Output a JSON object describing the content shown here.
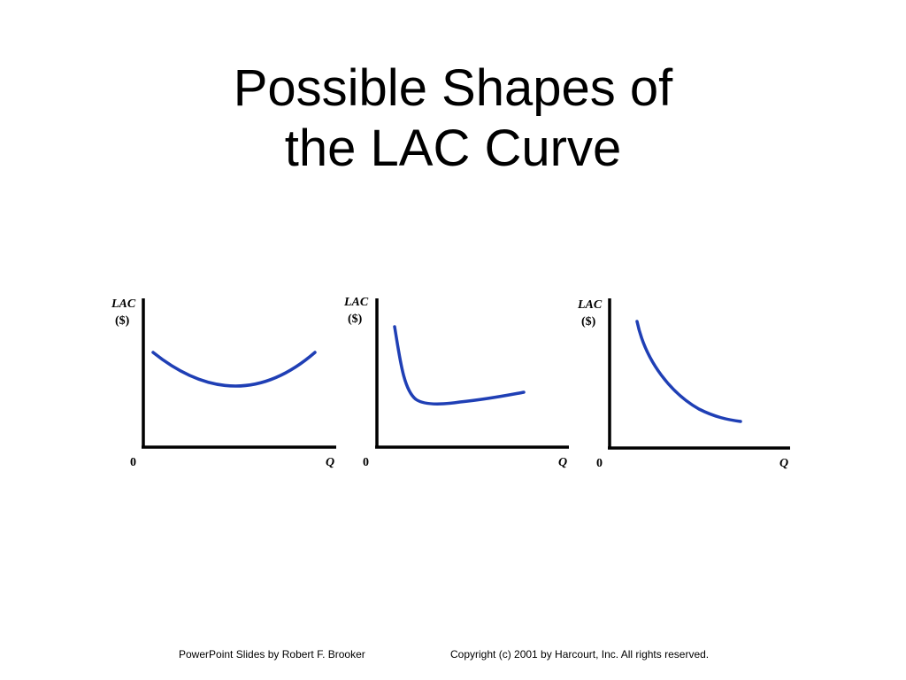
{
  "slide": {
    "title_line1": "Possible Shapes of",
    "title_line2": "the LAC Curve"
  },
  "colors": {
    "curve": "#1f3fb5",
    "axis": "#000000",
    "background": "#ffffff"
  },
  "panels": [
    {
      "y_label_line1": "LAC",
      "y_label_line2": "($)",
      "origin_label": "0",
      "x_label": "Q",
      "shape": "U-shaped"
    },
    {
      "y_label_line1": "LAC",
      "y_label_line2": "($)",
      "origin_label": "0",
      "x_label": "Q",
      "shape": "L-shaped, steep decline then gradual rise"
    },
    {
      "y_label_line1": "LAC",
      "y_label_line2": "($)",
      "origin_label": "0",
      "x_label": "Q",
      "shape": "continuously declining"
    }
  ],
  "footer": {
    "left": "PowerPoint Slides by Robert F. Brooker",
    "right": "Copyright (c) 2001 by Harcourt, Inc. All rights reserved."
  }
}
